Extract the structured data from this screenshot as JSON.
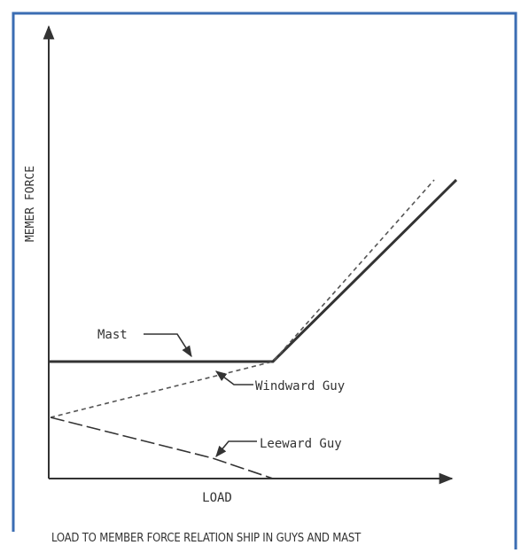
{
  "figure": {
    "caption": "LOAD TO MEMBER FORCE RELATION SHIP IN GUYS AND MAST",
    "frame_color": "#3b6db3"
  },
  "axes": {
    "x_label": "LOAD",
    "y_label": "MEMER FORCE"
  },
  "curves": {
    "mast": {
      "label": "Mast",
      "style": "solid"
    },
    "windward_guy": {
      "label": "Windward Guy",
      "style": "short-dash"
    },
    "leeward_guy": {
      "label": "Leeward Guy",
      "style": "long-dash"
    }
  }
}
